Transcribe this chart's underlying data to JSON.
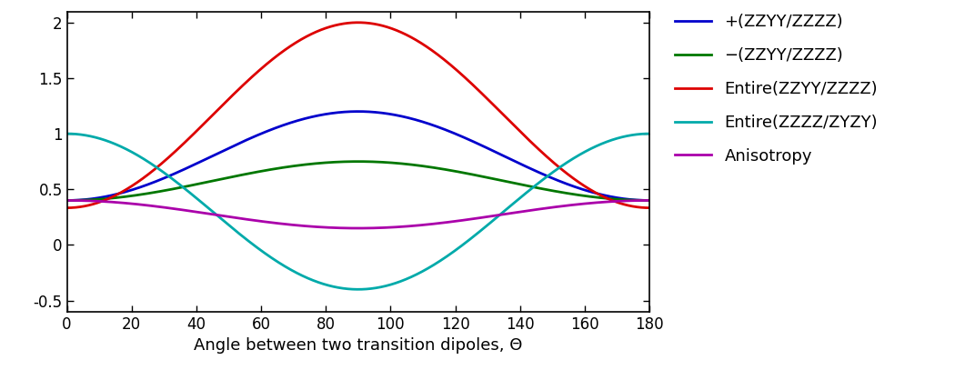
{
  "xlabel": "Angle between two transition dipoles, Θ",
  "xlim": [
    0,
    180
  ],
  "ylim": [
    -0.6,
    2.1
  ],
  "xticks": [
    0,
    20,
    40,
    60,
    80,
    100,
    120,
    140,
    160,
    180
  ],
  "yticks": [
    -0.5,
    0,
    0.5,
    1.0,
    1.5,
    2.0
  ],
  "colors": {
    "plus_zzyy": "#0000cc",
    "minus_zzyy": "#007700",
    "entire_zzyy": "#dd0000",
    "entire_zzzz": "#00aaaa",
    "anisotropy": "#aa00aa"
  },
  "legend_labels": [
    "+(ZZYY/ZZZZ)",
    "−(ZZYY/ZZZZ)",
    "Entire(ZZYY/ZZZZ)",
    "Entire(ZZZZ/ZYZY)",
    "Anisotropy"
  ],
  "linewidth": 2.0,
  "figsize": [
    10.5,
    4.18
  ],
  "dpi": 100,
  "legend_fontsize": 13,
  "tick_fontsize": 12,
  "xlabel_fontsize": 13,
  "plus_params": [
    0.4,
    0.8
  ],
  "minus_params": [
    0.4,
    0.35
  ],
  "entire_zzyy_params": [
    0.3333,
    1.6667
  ],
  "entire_zzzz_params": [
    -0.4,
    1.4
  ],
  "anisotropy_params": [
    0.275,
    0.125
  ]
}
